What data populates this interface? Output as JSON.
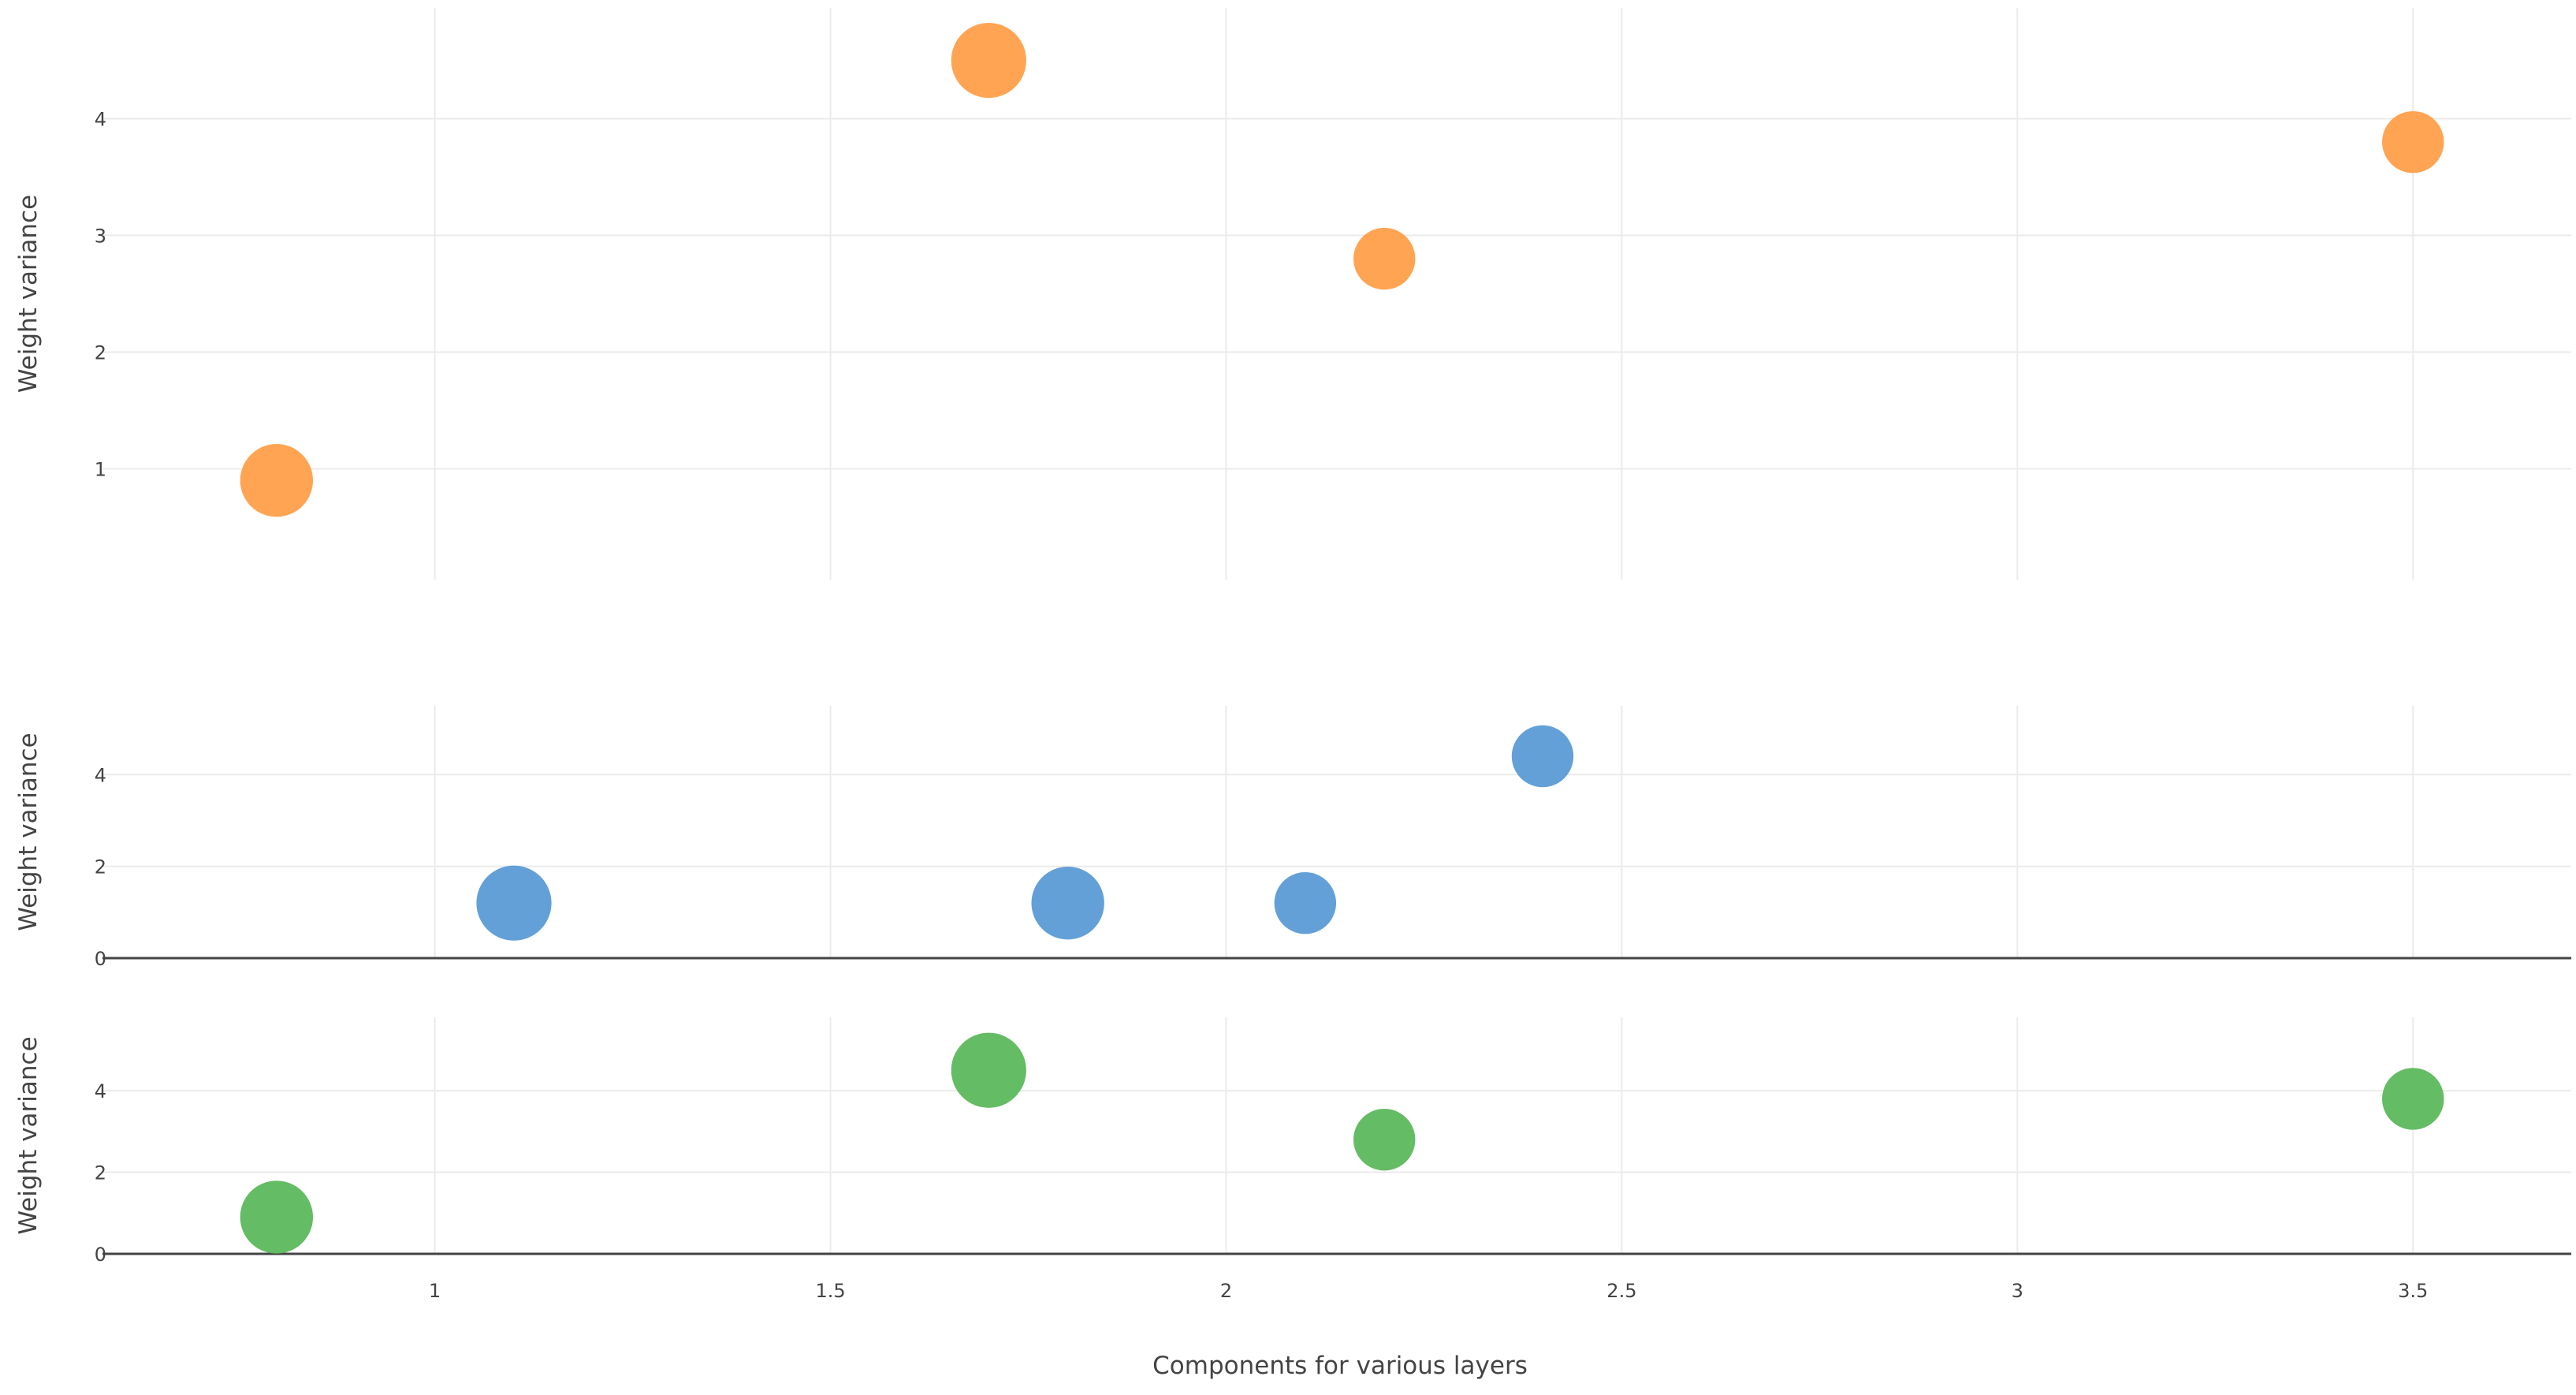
{
  "chart_data": {
    "type": "scatter",
    "xlabel": "Components for various layers",
    "x_ticks": [
      1,
      1.5,
      2,
      2.5,
      3,
      3.5
    ],
    "x_tick_labels": [
      "1",
      "1.5",
      "2",
      "2.5",
      "3",
      "3.5"
    ],
    "xlim": [
      0.58,
      3.7
    ],
    "grid": true,
    "legend": "none",
    "panels": [
      {
        "id": "top",
        "ylabel": "Weight variance",
        "ylim": [
          0.05,
          4.95
        ],
        "y_ticks": [
          1,
          2,
          3,
          4
        ],
        "y_tick_labels": [
          "1",
          "2",
          "3",
          "4"
        ],
        "zero_line": false,
        "color": "#ff9f4a",
        "points": [
          {
            "x": 0.8,
            "y": 0.9,
            "size": 3.3
          },
          {
            "x": 1.7,
            "y": 4.5,
            "size": 3.4
          },
          {
            "x": 2.2,
            "y": 2.8,
            "size": 2.8
          },
          {
            "x": 3.5,
            "y": 3.8,
            "size": 2.8
          }
        ]
      },
      {
        "id": "middle",
        "ylabel": "Weight variance",
        "ylim": [
          0,
          5.5
        ],
        "y_ticks": [
          0,
          2,
          4
        ],
        "y_tick_labels": [
          "0",
          "2",
          "4"
        ],
        "zero_line": true,
        "color": "#5b9bd5",
        "points": [
          {
            "x": 1.1,
            "y": 1.2,
            "size": 3.4
          },
          {
            "x": 1.8,
            "y": 1.2,
            "size": 3.3
          },
          {
            "x": 2.1,
            "y": 1.2,
            "size": 2.8
          },
          {
            "x": 2.4,
            "y": 4.4,
            "size": 2.8
          }
        ]
      },
      {
        "id": "bottom",
        "ylabel": "Weight variance",
        "ylim": [
          0,
          5.8
        ],
        "y_ticks": [
          0,
          2,
          4
        ],
        "y_tick_labels": [
          "0",
          "2",
          "4"
        ],
        "zero_line": true,
        "color": "#5cb85c",
        "points": [
          {
            "x": 0.8,
            "y": 0.9,
            "size": 3.3
          },
          {
            "x": 1.7,
            "y": 4.5,
            "size": 3.4
          },
          {
            "x": 2.2,
            "y": 2.8,
            "size": 2.8
          },
          {
            "x": 3.5,
            "y": 3.8,
            "size": 2.8
          }
        ]
      }
    ]
  }
}
